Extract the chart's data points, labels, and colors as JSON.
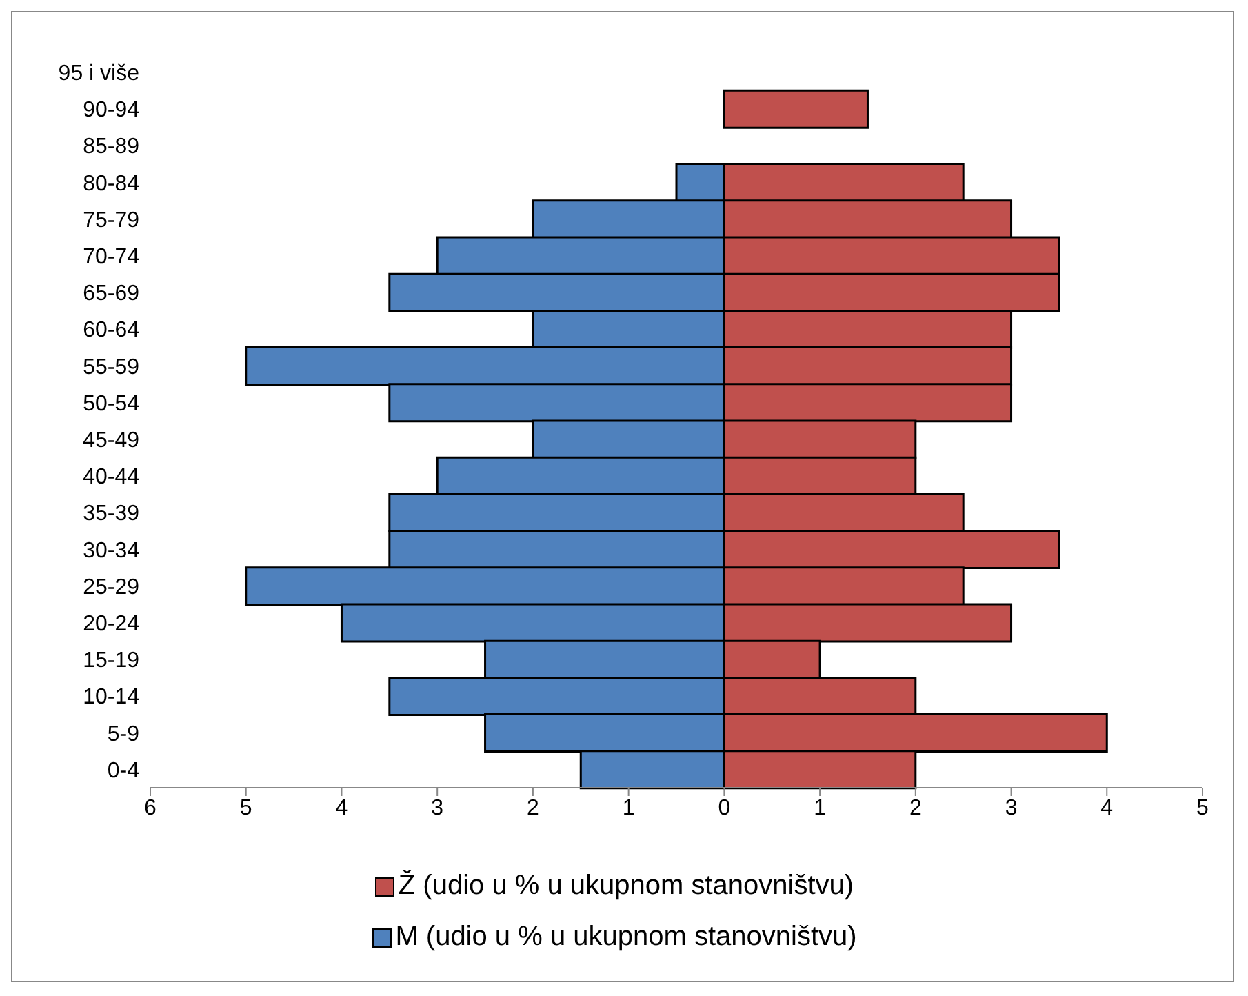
{
  "chart_data": {
    "type": "bar",
    "orientation": "horizontal",
    "stacked": true,
    "categories": [
      "95 i više",
      "90-94",
      "85-89",
      "80-84",
      "75-79",
      "70-74",
      "65-69",
      "60-64",
      "55-59",
      "50-54",
      "45-49",
      "40-44",
      "35-39",
      "30-34",
      "25-29",
      "20-24",
      "15-19",
      "10-14",
      "5-9",
      "0-4"
    ],
    "series": [
      {
        "name": "Ž (udio u % u ukupnom stanovništvu)",
        "color": "#c0504d",
        "values": [
          0,
          1.5,
          0,
          2.5,
          3,
          3.5,
          3.5,
          3,
          3,
          3,
          2,
          2,
          2.5,
          3.5,
          2.5,
          3,
          1,
          2,
          4,
          2
        ]
      },
      {
        "name": "M (udio u % u ukupnom stanovništvu)",
        "color": "#4f81bd",
        "values": [
          0,
          0,
          0,
          -0.5,
          -2,
          -3,
          -3.5,
          -2,
          -5,
          -3.5,
          -2,
          -3,
          -3.5,
          -3.5,
          -5,
          -4,
          -2.5,
          -3.5,
          -2.5,
          -1.5
        ]
      }
    ],
    "xlim": [
      -6,
      5
    ],
    "xticks": [
      {
        "value": -6,
        "label": "6"
      },
      {
        "value": -5,
        "label": "5"
      },
      {
        "value": -4,
        "label": "4"
      },
      {
        "value": -3,
        "label": "3"
      },
      {
        "value": -2,
        "label": "2"
      },
      {
        "value": -1,
        "label": "1"
      },
      0,
      1,
      2,
      3,
      4,
      5
    ],
    "grid": false,
    "legend": "bottom"
  }
}
